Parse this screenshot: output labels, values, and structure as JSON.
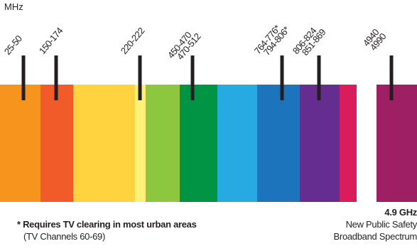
{
  "diagram": {
    "unit_label": "MHz",
    "colors": [
      "#f7941d",
      "#f15a29",
      "#ffd23f",
      "#fff079",
      "#8dc63f",
      "#009444",
      "#27aae1",
      "#1c75bc",
      "#662d91",
      "#da1c5c",
      "#9e1f63"
    ],
    "markers": [
      {
        "label": "25-50"
      },
      {
        "label": "150-174"
      },
      {
        "label": "220-222"
      },
      {
        "label": "450-470"
      },
      {
        "label": "470-512"
      },
      {
        "label": "764-776*"
      },
      {
        "label": "794-806*"
      },
      {
        "label": "806-824"
      },
      {
        "label": "851-869"
      },
      {
        "label": "4940"
      },
      {
        "label": "4990"
      }
    ]
  },
  "footnote": {
    "bold": "* Requires TV clearing in most urban areas",
    "detail": "(TV Channels 60-69)"
  },
  "public_safety": {
    "freq": "4.9 GHz",
    "line1": "New Public Safety",
    "line2": "Broadband Spectrum"
  }
}
